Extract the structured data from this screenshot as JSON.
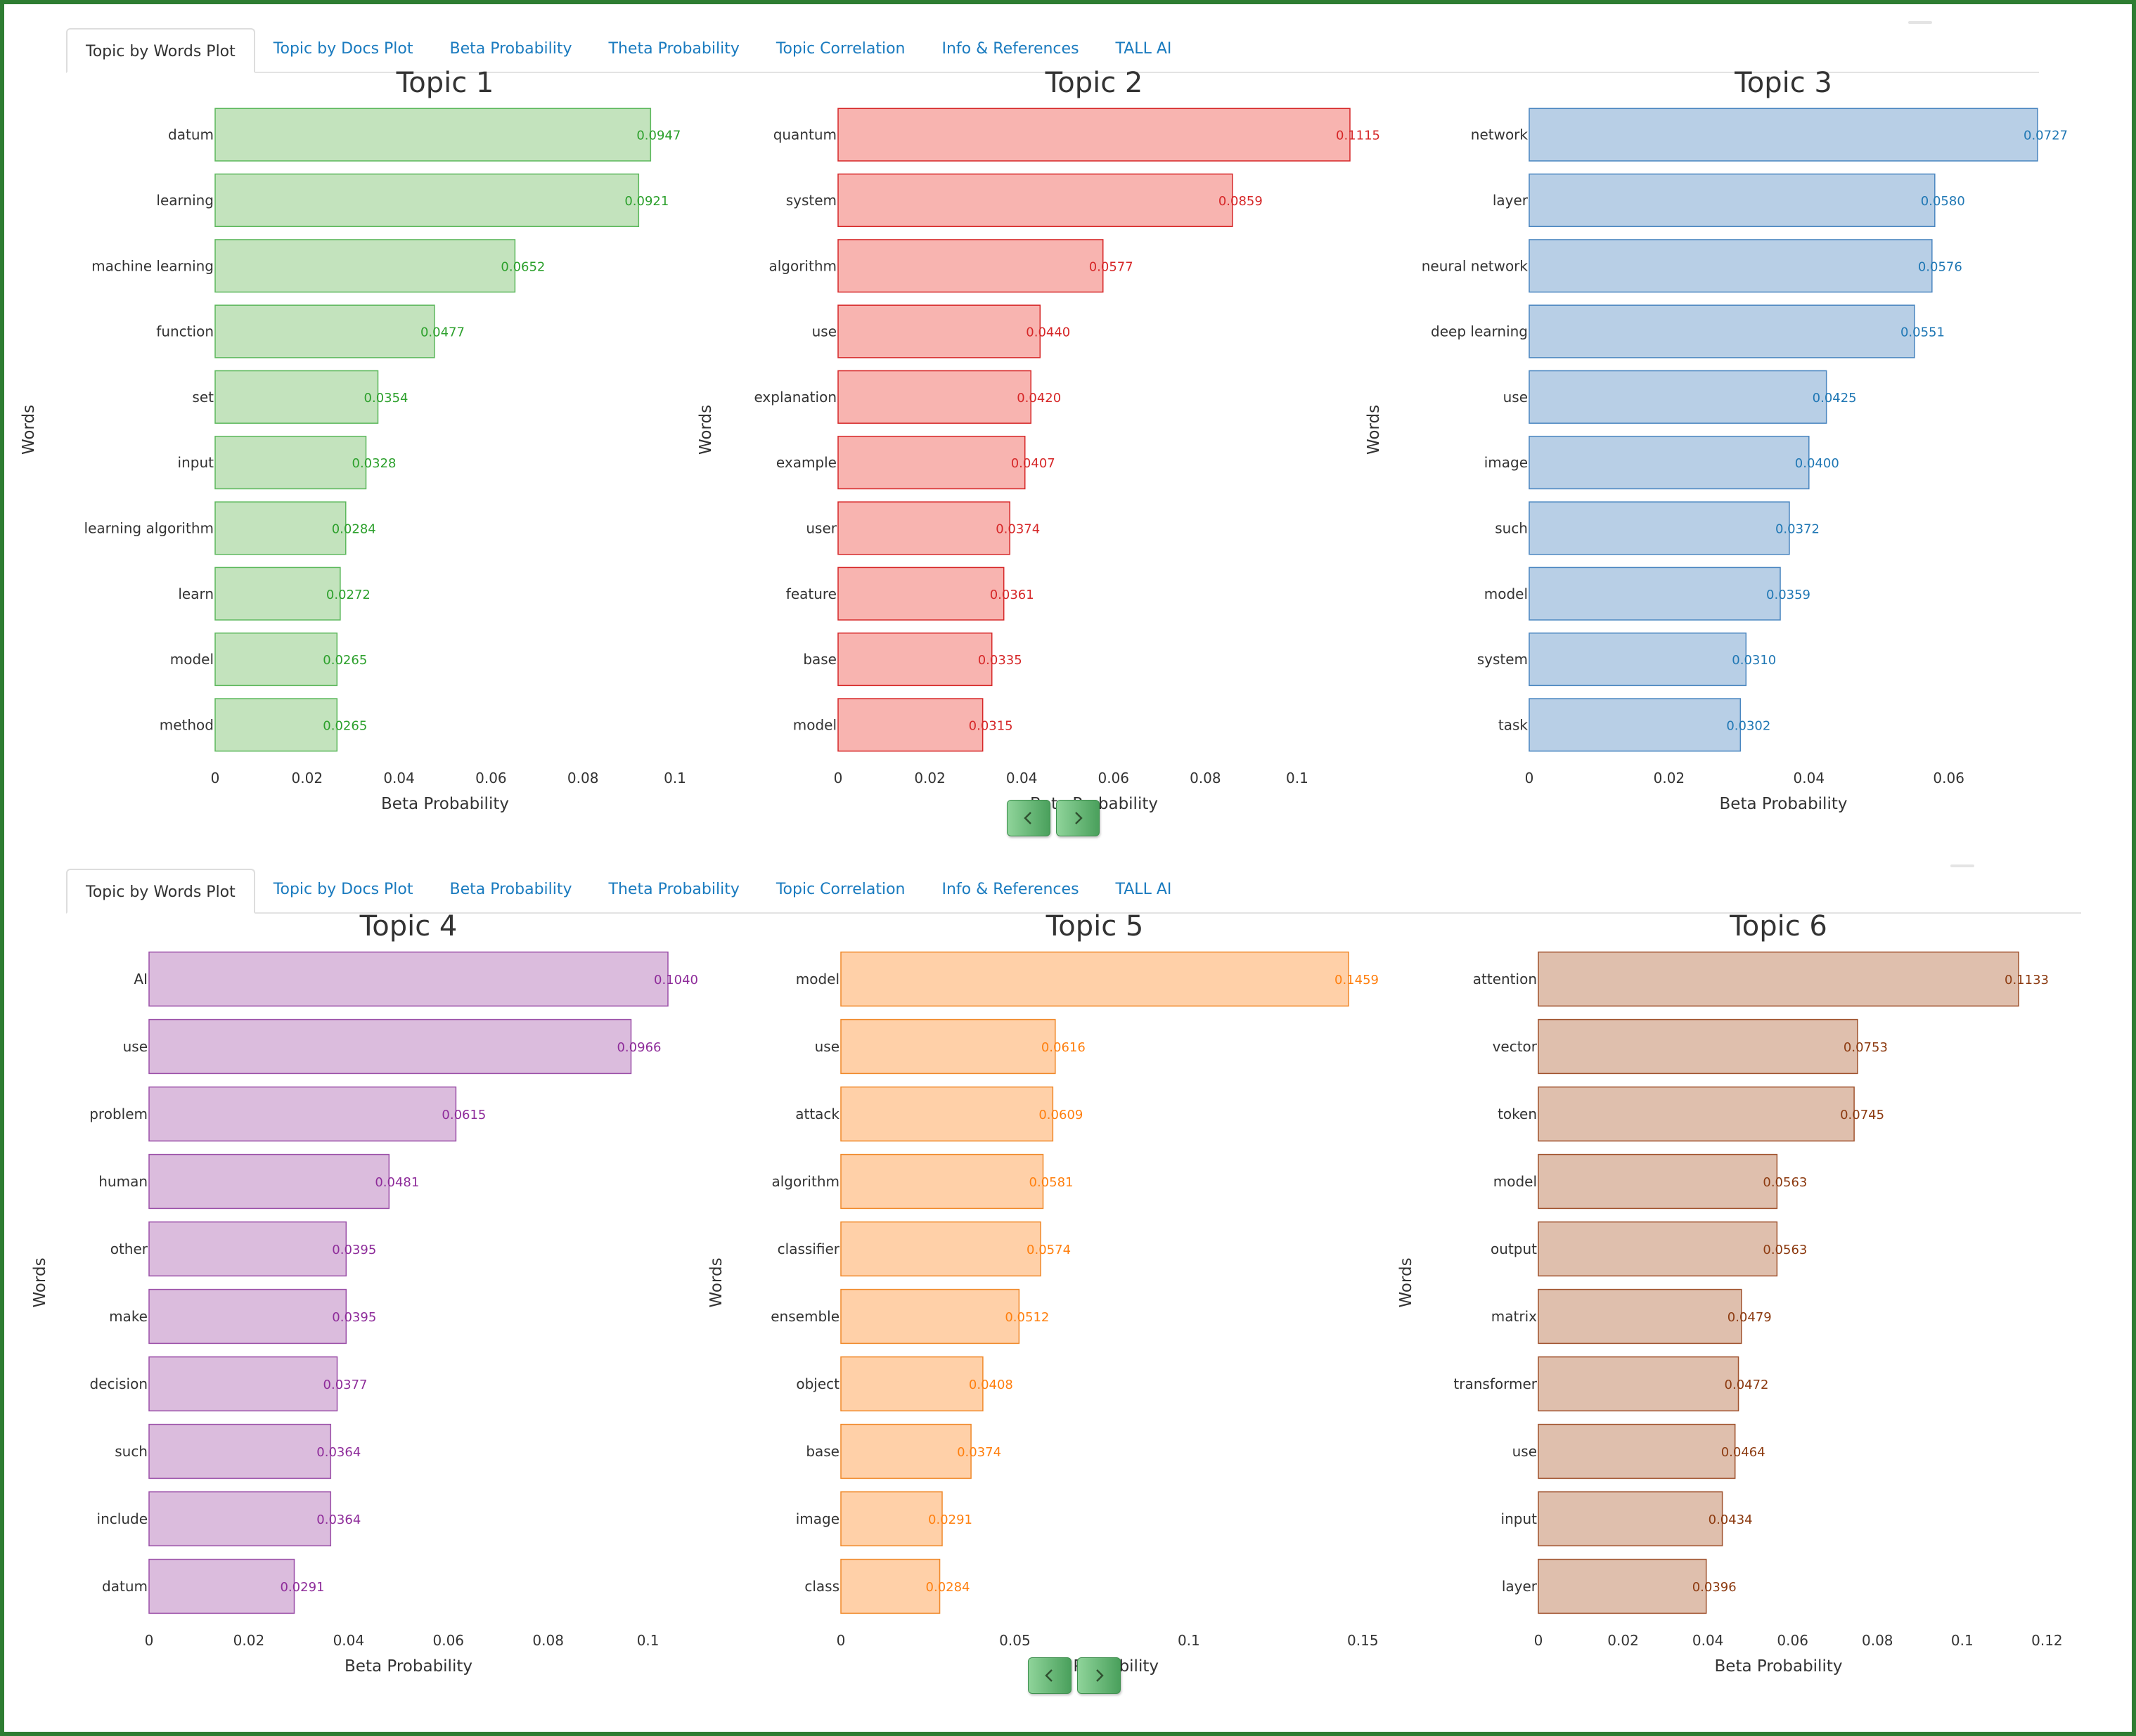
{
  "top_tabs": [
    {
      "label": "Topic by Words Plot",
      "active": true
    },
    {
      "label": "Topic by Docs Plot",
      "active": false
    },
    {
      "label": "Beta Probability",
      "active": false
    },
    {
      "label": "Theta Probability",
      "active": false
    },
    {
      "label": "Topic Correlation",
      "active": false
    },
    {
      "label": "Info & References",
      "active": false
    },
    {
      "label": "TALL AI",
      "active": false
    }
  ],
  "bottom_tabs": [
    {
      "label": "Topic by Words Plot",
      "active": true
    },
    {
      "label": "Topic by Docs Plot",
      "active": false
    },
    {
      "label": "Beta Probability",
      "active": false
    },
    {
      "label": "Theta Probability",
      "active": false
    },
    {
      "label": "Topic Correlation",
      "active": false
    },
    {
      "label": "Info & References",
      "active": false
    },
    {
      "label": "TALL AI",
      "active": false
    }
  ],
  "nav": {
    "prev_icon": "chevron-left-icon",
    "next_icon": "chevron-right-icon",
    "prev_symbol": "‹",
    "next_symbol": "›"
  },
  "chart_data": [
    {
      "type": "bar",
      "orientation": "horizontal",
      "title": "Topic 1",
      "xlabel": "Beta Probability",
      "ylabel": "Words",
      "xlim": [
        0,
        0.1
      ],
      "xticks": [
        0,
        0.02,
        0.04,
        0.06,
        0.08,
        0.1
      ],
      "xtick_labels": [
        "0",
        "0.02",
        "0.04",
        "0.06",
        "0.08",
        "0.1"
      ],
      "fill": "#c3e3bd",
      "stroke": "#5cb85c",
      "label_color": "#2ca02c",
      "categories": [
        "datum",
        "learning",
        "machine learning",
        "function",
        "set",
        "input",
        "learning algorithm",
        "learn",
        "model",
        "method"
      ],
      "values": [
        0.0947,
        0.0921,
        0.0652,
        0.0477,
        0.0354,
        0.0328,
        0.0284,
        0.0272,
        0.0265,
        0.0265
      ],
      "value_labels": [
        "0.0947",
        "0.0921",
        "0.0652",
        "0.0477",
        "0.0354",
        "0.0328",
        "0.0284",
        "0.0272",
        "0.0265",
        "0.0265"
      ]
    },
    {
      "type": "bar",
      "orientation": "horizontal",
      "title": "Topic 2",
      "xlabel": "Beta Probability",
      "ylabel": "Words",
      "xlim": [
        0,
        0.1115
      ],
      "xticks": [
        0,
        0.02,
        0.04,
        0.06,
        0.08,
        0.1
      ],
      "xtick_labels": [
        "0",
        "0.02",
        "0.04",
        "0.06",
        "0.08",
        "0.1"
      ],
      "fill": "#f8b4b0",
      "stroke": "#d62728",
      "label_color": "#d62728",
      "categories": [
        "quantum",
        "system",
        "algorithm",
        "use",
        "explanation",
        "example",
        "user",
        "feature",
        "base",
        "model"
      ],
      "values": [
        0.1115,
        0.0859,
        0.0577,
        0.044,
        0.042,
        0.0407,
        0.0374,
        0.0361,
        0.0335,
        0.0315
      ],
      "value_labels": [
        "0.1115",
        "0.0859",
        "0.0577",
        "0.0440",
        "0.0420",
        "0.0407",
        "0.0374",
        "0.0361",
        "0.0335",
        "0.0315"
      ]
    },
    {
      "type": "bar",
      "orientation": "horizontal",
      "title": "Topic 3",
      "xlabel": "Beta Probability",
      "ylabel": "Words",
      "xlim": [
        0,
        0.0727
      ],
      "xticks": [
        0,
        0.02,
        0.04,
        0.06
      ],
      "xtick_labels": [
        "0",
        "0.02",
        "0.04",
        "0.06"
      ],
      "fill": "#b8cfe6",
      "stroke": "#4a86c0",
      "label_color": "#1f77b4",
      "categories": [
        "network",
        "layer",
        "neural network",
        "deep learning",
        "use",
        "image",
        "such",
        "model",
        "system",
        "task"
      ],
      "values": [
        0.0727,
        0.058,
        0.0576,
        0.0551,
        0.0425,
        0.04,
        0.0372,
        0.0359,
        0.031,
        0.0302
      ],
      "value_labels": [
        "0.0727",
        "0.0580",
        "0.0576",
        "0.0551",
        "0.0425",
        "0.0400",
        "0.0372",
        "0.0359",
        "0.0310",
        "0.0302"
      ]
    },
    {
      "type": "bar",
      "orientation": "horizontal",
      "title": "Topic 4",
      "xlabel": "Beta Probability",
      "ylabel": "Words",
      "xlim": [
        0,
        0.104
      ],
      "xticks": [
        0,
        0.02,
        0.04,
        0.06,
        0.08,
        0.1
      ],
      "xtick_labels": [
        "0",
        "0.02",
        "0.04",
        "0.06",
        "0.08",
        "0.1"
      ],
      "fill": "#dbbcdd",
      "stroke": "#9b4fa8",
      "label_color": "#8e2c9a",
      "categories": [
        "AI",
        "use",
        "problem",
        "human",
        "other",
        "make",
        "decision",
        "such",
        "include",
        "datum"
      ],
      "values": [
        0.104,
        0.0966,
        0.0615,
        0.0481,
        0.0395,
        0.0395,
        0.0377,
        0.0364,
        0.0364,
        0.0291
      ],
      "value_labels": [
        "0.1040",
        "0.0966",
        "0.0615",
        "0.0481",
        "0.0395",
        "0.0395",
        "0.0377",
        "0.0364",
        "0.0364",
        "0.0291"
      ]
    },
    {
      "type": "bar",
      "orientation": "horizontal",
      "title": "Topic 5",
      "xlabel": "Beta Probability",
      "ylabel": "Words",
      "xlim": [
        0,
        0.1459
      ],
      "xticks": [
        0,
        0.05,
        0.1,
        0.15
      ],
      "xtick_labels": [
        "0",
        "0.05",
        "0.1",
        "0.15"
      ],
      "fill": "#ffd0a8",
      "stroke": "#f0892a",
      "label_color": "#ff7f0e",
      "categories": [
        "model",
        "use",
        "attack",
        "algorithm",
        "classifier",
        "ensemble",
        "object",
        "base",
        "image",
        "class"
      ],
      "values": [
        0.1459,
        0.0616,
        0.0609,
        0.0581,
        0.0574,
        0.0512,
        0.0408,
        0.0374,
        0.0291,
        0.0284
      ],
      "value_labels": [
        "0.1459",
        "0.0616",
        "0.0609",
        "0.0581",
        "0.0574",
        "0.0512",
        "0.0408",
        "0.0374",
        "0.0291",
        "0.0284"
      ]
    },
    {
      "type": "bar",
      "orientation": "horizontal",
      "title": "Topic 6",
      "xlabel": "Beta Probability",
      "ylabel": "Words",
      "xlim": [
        0,
        0.1133
      ],
      "xticks": [
        0,
        0.02,
        0.04,
        0.06,
        0.08,
        0.1,
        0.12
      ],
      "xtick_labels": [
        "0",
        "0.02",
        "0.04",
        "0.06",
        "0.08",
        "0.1",
        "0.12"
      ],
      "fill": "#dfbfad",
      "stroke": "#a0522d",
      "label_color": "#8c3a10",
      "categories": [
        "attention",
        "vector",
        "token",
        "model",
        "output",
        "matrix",
        "transformer",
        "use",
        "input",
        "layer"
      ],
      "values": [
        0.1133,
        0.0753,
        0.0745,
        0.0563,
        0.0563,
        0.0479,
        0.0472,
        0.0464,
        0.0434,
        0.0396
      ],
      "value_labels": [
        "0.1133",
        "0.0753",
        "0.0745",
        "0.0563",
        "0.0563",
        "0.0479",
        "0.0472",
        "0.0464",
        "0.0434",
        "0.0396"
      ]
    }
  ]
}
